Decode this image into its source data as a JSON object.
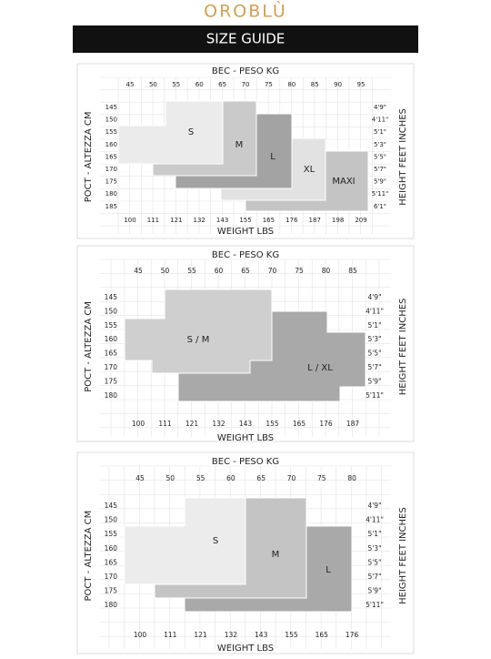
{
  "brand": "OROBLÙ",
  "title": "SIZE GUIDE",
  "guides": [
    {
      "top_label": "BEC - PESO KG",
      "kg": [
        45,
        50,
        55,
        60,
        65,
        70,
        75,
        80,
        85,
        90,
        95
      ],
      "cm": [
        145,
        150,
        155,
        160,
        165,
        170,
        175,
        180,
        185
      ],
      "feet": [
        "4'9\"",
        "4'11\"",
        "5'1\"",
        "5'3\"",
        "5'5\"",
        "5'7\"",
        "5'9\"",
        "5'11\"",
        "6'1\""
      ],
      "lbs": [
        100,
        111,
        121,
        132,
        143,
        155,
        165,
        176,
        187,
        198,
        209
      ],
      "bottom_label": "WEIGHT LBS",
      "left_label": "POCT - ALTEZZA CM",
      "right_label": "HEIGHT FEET INCHES",
      "sizes": [
        "S",
        "M",
        "L",
        "XL",
        "MAXI"
      ]
    },
    {
      "top_label": "BEC - PESO KG",
      "kg": [
        45,
        50,
        55,
        60,
        65,
        70,
        75,
        80,
        85
      ],
      "cm": [
        145,
        150,
        155,
        160,
        165,
        170,
        175,
        180
      ],
      "feet": [
        "4'9\"",
        "4'11\"",
        "5'1\"",
        "5'3\"",
        "5'5\"",
        "5'7\"",
        "5'9\"",
        "5'11\""
      ],
      "lbs": [
        100,
        111,
        121,
        132,
        143,
        155,
        165,
        176,
        187
      ],
      "bottom_label": "WEIGHT LBS",
      "left_label": "POCT - ALTEZZA CM",
      "right_label": "HEIGHT FEET INCHES",
      "sizes": [
        "S / M",
        "L / XL"
      ]
    },
    {
      "top_label": "BEC - PESO KG",
      "kg": [
        45,
        50,
        55,
        60,
        65,
        70,
        75,
        80
      ],
      "cm": [
        145,
        150,
        155,
        160,
        165,
        170,
        175,
        180
      ],
      "feet": [
        "4'9\"",
        "4'11\"",
        "5'1\"",
        "5'3\"",
        "5'5\"",
        "5'7\"",
        "5'9\"",
        "5'11\""
      ],
      "lbs": [
        100,
        111,
        121,
        132,
        143,
        155,
        165,
        176
      ],
      "bottom_label": "WEIGHT LBS",
      "left_label": "POCT - ALTEZZA CM",
      "right_label": "HEIGHT FEET INCHES",
      "sizes": [
        "S",
        "M",
        "L"
      ]
    }
  ]
}
